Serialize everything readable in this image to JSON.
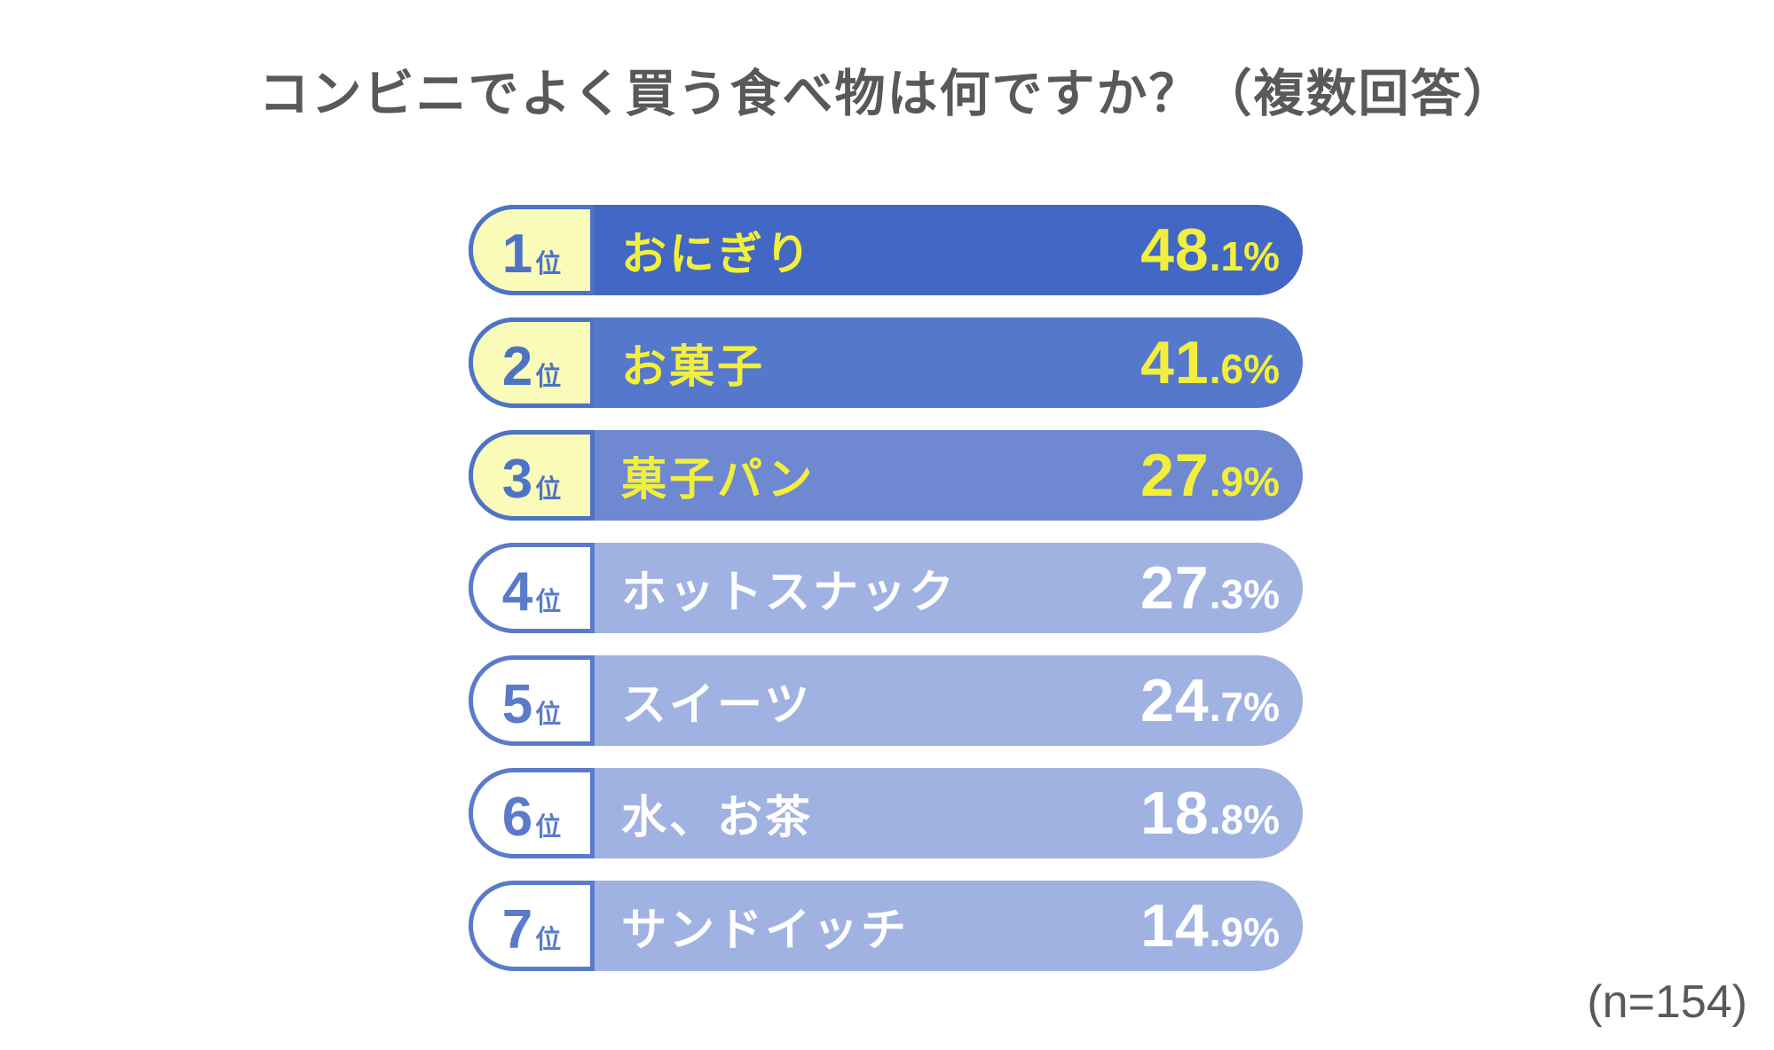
{
  "title": "コンビニでよく買う食べ物は何ですか？（複数回答）",
  "rank_suffix": "位",
  "footer": {
    "sample_size": "(n=154)"
  },
  "colors_note": {
    "title_text": "#595959",
    "rank1_bar": "#4267C4",
    "rank2_bar": "#5578CC",
    "rank3_bar": "#6E88D2",
    "rank4to7_bar": "#A0B2E2",
    "highlight_text_yellow": "#F2EF3C",
    "badge_pale_yellow": "#FAFAB9",
    "badge_white": "#FFFFFF",
    "badge_accent_blue": "#4D73C5",
    "badge_accent_light_blue": "#5B7BCA"
  },
  "chart_data": {
    "type": "bar",
    "title": "コンビニでよく買う食べ物は何ですか？（複数回答）",
    "categories": [
      "おにぎり",
      "お菓子",
      "菓子パン",
      "ホットスナック",
      "スイーツ",
      "水、お茶",
      "サンドイッチ"
    ],
    "values": [
      48.1,
      41.6,
      27.9,
      27.3,
      24.7,
      18.8,
      14.9
    ],
    "unit": "%",
    "ranks": [
      1,
      2,
      3,
      4,
      5,
      6,
      7
    ],
    "sample_size_label": "(n=154)",
    "layout": "horizontal equal-length ranking rows, value printed inside bar, no axes, no gridlines"
  },
  "rows": [
    {
      "rank": "1",
      "label": "おにぎり",
      "value_int": "48",
      "value_frac": ".1%",
      "colors": {
        "bar": "#4267C4",
        "text": "#F2EF3C",
        "badge_bg": "#FAFAB9",
        "accent": "#4D73C5"
      }
    },
    {
      "rank": "2",
      "label": "お菓子",
      "value_int": "41",
      "value_frac": ".6%",
      "colors": {
        "bar": "#5578CC",
        "text": "#F2EF3C",
        "badge_bg": "#FAFAB9",
        "accent": "#4D73C5"
      }
    },
    {
      "rank": "3",
      "label": "菓子パン",
      "value_int": "27",
      "value_frac": ".9%",
      "colors": {
        "bar": "#6E88D2",
        "text": "#F2EF3C",
        "badge_bg": "#FAFAB9",
        "accent": "#4D73C5"
      }
    },
    {
      "rank": "4",
      "label": "ホットスナック",
      "value_int": "27",
      "value_frac": ".3%",
      "colors": {
        "bar": "#A0B2E2",
        "text": "#FFFFFF",
        "badge_bg": "#FFFFFF",
        "accent": "#5B7BCA"
      }
    },
    {
      "rank": "5",
      "label": "スイーツ",
      "value_int": "24",
      "value_frac": ".7%",
      "colors": {
        "bar": "#A0B2E2",
        "text": "#FFFFFF",
        "badge_bg": "#FFFFFF",
        "accent": "#5B7BCA"
      }
    },
    {
      "rank": "6",
      "label": "水、お茶",
      "value_int": "18",
      "value_frac": ".8%",
      "colors": {
        "bar": "#A0B2E2",
        "text": "#FFFFFF",
        "badge_bg": "#FFFFFF",
        "accent": "#5B7BCA"
      }
    },
    {
      "rank": "7",
      "label": "サンドイッチ",
      "value_int": "14",
      "value_frac": ".9%",
      "colors": {
        "bar": "#A0B2E2",
        "text": "#FFFFFF",
        "badge_bg": "#FFFFFF",
        "accent": "#5B7BCA"
      }
    }
  ]
}
